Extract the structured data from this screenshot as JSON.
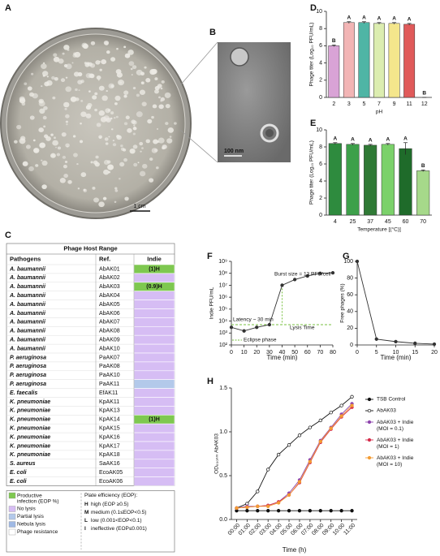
{
  "photo_a": {
    "label": "A",
    "scale_bar": "1 cm"
  },
  "photo_b": {
    "label": "B",
    "scale_bar": "100 nm"
  },
  "table": {
    "label": "C",
    "title": "Phage Host Range",
    "headers": [
      "Pathogens",
      "Ref.",
      "Indie"
    ],
    "rows": [
      {
        "pathogen": "A. baumannii",
        "ref": "AbAK01",
        "indie": "(1)H",
        "color": "#7ec850"
      },
      {
        "pathogen": "A. baumannii",
        "ref": "AbAK02",
        "indie": null,
        "color": "#d6bdf4"
      },
      {
        "pathogen": "A. baumannii",
        "ref": "AbAK03",
        "indie": "(0.9)H",
        "color": "#7ec850"
      },
      {
        "pathogen": "A. baumannii",
        "ref": "AbAK04",
        "indie": null,
        "color": "#d6bdf4"
      },
      {
        "pathogen": "A. baumannii",
        "ref": "AbAK05",
        "indie": null,
        "color": "#d6bdf4"
      },
      {
        "pathogen": "A. baumannii",
        "ref": "AbAK06",
        "indie": null,
        "color": "#d6bdf4"
      },
      {
        "pathogen": "A. baumannii",
        "ref": "AbAK07",
        "indie": null,
        "color": "#d6bdf4"
      },
      {
        "pathogen": "A. baumannii",
        "ref": "AbAK08",
        "indie": null,
        "color": "#d6bdf4"
      },
      {
        "pathogen": "A. baumannii",
        "ref": "AbAK09",
        "indie": null,
        "color": "#d6bdf4"
      },
      {
        "pathogen": "A. baumannii",
        "ref": "AbAK10",
        "indie": null,
        "color": "#d6bdf4"
      },
      {
        "pathogen": "P. aeruginosa",
        "ref": "PaAK07",
        "indie": null,
        "color": "#d6bdf4"
      },
      {
        "pathogen": "P. aeruginosa",
        "ref": "PaAK08",
        "indie": null,
        "color": "#d6bdf4"
      },
      {
        "pathogen": "P. aeruginosa",
        "ref": "PaAK10",
        "indie": null,
        "color": "#d6bdf4"
      },
      {
        "pathogen": "P. aeruginosa",
        "ref": "PaAK11",
        "indie": null,
        "color": "#b3c9ea"
      },
      {
        "pathogen": "E. faecalis",
        "ref": "EfAK11",
        "indie": null,
        "color": "#d6bdf4"
      },
      {
        "pathogen": "K. pneumoniae",
        "ref": "KpAK11",
        "indie": null,
        "color": "#d6bdf4"
      },
      {
        "pathogen": "K. pneumoniae",
        "ref": "KpAK13",
        "indie": null,
        "color": "#d6bdf4"
      },
      {
        "pathogen": "K. pneumoniae",
        "ref": "KpAK14",
        "indie": "(1)H",
        "color": "#7ec850"
      },
      {
        "pathogen": "K. pneumoniae",
        "ref": "KpAK15",
        "indie": null,
        "color": "#d6bdf4"
      },
      {
        "pathogen": "K. pneumoniae",
        "ref": "KpAK16",
        "indie": null,
        "color": "#d6bdf4"
      },
      {
        "pathogen": "K. pneumoniae",
        "ref": "KpAK17",
        "indie": null,
        "color": "#d6bdf4"
      },
      {
        "pathogen": "K. pneumoniae",
        "ref": "KpAK18",
        "indie": null,
        "color": "#d6bdf4"
      },
      {
        "pathogen": "S. aureus",
        "ref": "SaAK16",
        "indie": null,
        "color": "#d6bdf4"
      },
      {
        "pathogen": "E. coli",
        "ref": "EcoAK05",
        "indie": null,
        "color": "#d6bdf4"
      },
      {
        "pathogen": "E. coli",
        "ref": "EcoAK06",
        "indie": null,
        "color": "#d6bdf4"
      }
    ],
    "legend": [
      {
        "text": "Productive infection (EOP %)",
        "color": "#7ec850"
      },
      {
        "text": "No lysis",
        "color": "#d6bdf4"
      },
      {
        "text": "Partial lysis",
        "color": "#b3c9ea"
      },
      {
        "text": "Nebula lysis",
        "color": "#9fb9e4"
      },
      {
        "text": "Phage resistance",
        "color": "#ffffff"
      }
    ],
    "efficiency_title": "Plate efficiency (EOP):",
    "efficiency": [
      {
        "key": "H",
        "text": "high (EOP ≥0.5)"
      },
      {
        "key": "M",
        "text": "medium (0.1≤EOP<0.5)"
      },
      {
        "key": "L",
        "text": "low (0.001<EOP<0.1)"
      },
      {
        "key": "I",
        "text": "ineffective (EOP≤0.001)"
      }
    ]
  },
  "chart_data": [
    {
      "type": "bar",
      "label": "D",
      "categories": [
        "2",
        "3",
        "5",
        "7",
        "9",
        "11",
        "12"
      ],
      "values": [
        6.0,
        8.7,
        8.7,
        8.6,
        8.6,
        8.5,
        0
      ],
      "errors": [
        0.1,
        0.1,
        0.1,
        0.1,
        0.1,
        0.1,
        0
      ],
      "letters": [
        "B",
        "A",
        "A",
        "A",
        "A",
        "A",
        "B"
      ],
      "colors": [
        "#d9a3d6",
        "#f2b5b5",
        "#4fb5a5",
        "#dcedb0",
        "#f4e68c",
        "#e05a5a",
        "#e05a5a"
      ],
      "ylim": [
        0,
        10
      ],
      "yticks": [
        0,
        2,
        4,
        6,
        8,
        10
      ],
      "x_label": "pH",
      "y_label": "Phage titer (Log₁₀ PFU/mL)"
    },
    {
      "type": "bar",
      "label": "E",
      "categories": [
        "4",
        "25",
        "37",
        "45",
        "60",
        "70"
      ],
      "values": [
        8.4,
        8.3,
        8.2,
        8.3,
        7.8,
        5.2
      ],
      "errors": [
        0.1,
        0.1,
        0.1,
        0.1,
        0.7,
        0.1
      ],
      "letters": [
        "A",
        "A",
        "A",
        "A",
        "A",
        "B"
      ],
      "colors": [
        "#2e8b3e",
        "#3da04a",
        "#2f7a35",
        "#7bd16a",
        "#1f6b2a",
        "#a6d98a"
      ],
      "ylim": [
        0,
        10
      ],
      "yticks": [
        0,
        2,
        4,
        6,
        8,
        10
      ],
      "x_label": "Temperature [(°C)]",
      "y_label": "Phage titer (Log₁₀ PFU/mL)"
    },
    {
      "type": "line",
      "label": "F",
      "x": [
        0,
        10,
        20,
        30,
        40,
        50,
        60,
        70,
        80
      ],
      "values": [
        3000,
        1500,
        3000,
        5000,
        10000000,
        30000000,
        60000000,
        100000000,
        110000000
      ],
      "color": "#333333",
      "log_y": true,
      "ylim": [
        100,
        1000000000
      ],
      "yticks": [
        {
          "value": 100,
          "label": "10²"
        },
        {
          "value": 1000,
          "label": "10³"
        },
        {
          "value": 10000,
          "label": "10⁴"
        },
        {
          "value": 100000,
          "label": "10⁵"
        },
        {
          "value": 1000000,
          "label": "10⁶"
        },
        {
          "value": 10000000,
          "label": "10⁷"
        },
        {
          "value": 100000000,
          "label": "10⁸"
        },
        {
          "value": 1000000000,
          "label": "10⁹"
        }
      ],
      "xlim": [
        0,
        80
      ],
      "xticks": [
        0,
        10,
        20,
        30,
        40,
        50,
        60,
        70,
        80
      ],
      "x_label": "Time (min)",
      "y_label": "Indie PFU/mL",
      "reference_line": 5000,
      "annotations": [
        "Latency ~ 30 min",
        "Burst size = 13 PFU/cell",
        "Lysis Time",
        "Eclipse phase"
      ]
    },
    {
      "type": "line",
      "label": "G",
      "x": [
        0,
        5,
        10,
        15,
        20
      ],
      "values": [
        100,
        7,
        4,
        2,
        1
      ],
      "color": "#333333",
      "ylim": [
        0,
        100
      ],
      "yticks": [
        0,
        20,
        40,
        60,
        80,
        100
      ],
      "xlim": [
        0,
        20
      ],
      "xticks": [
        0,
        5,
        10,
        15,
        20
      ],
      "x_label": "Time (min)",
      "y_label": "Free phages (%)"
    },
    {
      "type": "line",
      "label": "H",
      "categories": [
        "00:00",
        "01:00",
        "02:00",
        "03:00",
        "04:00",
        "05:00",
        "06:00",
        "07:00",
        "08:00",
        "09:00",
        "10:00",
        "11:00"
      ],
      "series": [
        {
          "name": "TSB Control",
          "color": "#111111",
          "marker": "filled",
          "values": [
            0.1,
            0.1,
            0.1,
            0.1,
            0.1,
            0.1,
            0.1,
            0.1,
            0.1,
            0.1,
            0.1,
            0.1
          ]
        },
        {
          "name": "AbAK03",
          "color": "#111111",
          "marker": "open",
          "values": [
            0.13,
            0.18,
            0.32,
            0.57,
            0.74,
            0.85,
            0.96,
            1.05,
            1.13,
            1.22,
            1.3,
            1.4
          ]
        },
        {
          "name": "AbAK03 + Indie (MOI = 0.1)",
          "color": "#8e44ad",
          "marker": "filled",
          "values": [
            0.13,
            0.15,
            0.15,
            0.16,
            0.2,
            0.3,
            0.45,
            0.68,
            0.9,
            1.05,
            1.2,
            1.32
          ]
        },
        {
          "name": "AbAK03 + Indie (MOI = 1)",
          "color": "#d62d4b",
          "marker": "filled",
          "values": [
            0.13,
            0.14,
            0.15,
            0.16,
            0.2,
            0.28,
            0.42,
            0.65,
            0.88,
            1.03,
            1.17,
            1.28
          ]
        },
        {
          "name": "AbAK03 + Indie (MOI = 10)",
          "color": "#f39c34",
          "marker": "filled",
          "values": [
            0.13,
            0.14,
            0.15,
            0.15,
            0.19,
            0.28,
            0.43,
            0.66,
            0.89,
            1.04,
            1.18,
            1.3
          ]
        }
      ],
      "ylim": [
        0,
        1.5
      ],
      "yticks": [
        {
          "value": 0,
          "label": "0.0"
        },
        0.5,
        {
          "value": 1,
          "label": "1.0"
        },
        1.5
      ],
      "x_label": "Time (h)",
      "y_label": "OD₆₀₀ₙₘ AbAK03"
    }
  ]
}
